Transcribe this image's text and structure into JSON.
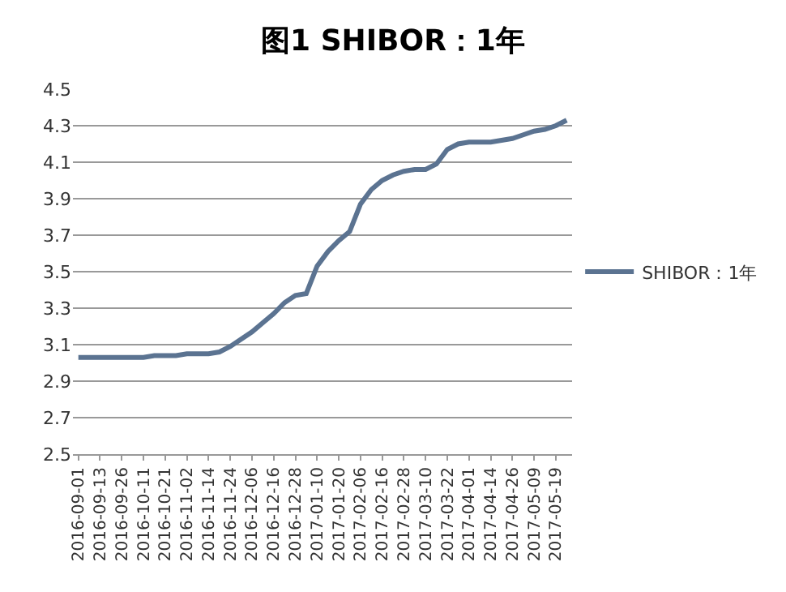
{
  "chart_data": {
    "type": "line",
    "title": "图1 SHIBOR：1年",
    "categories": [
      "2016-09-01",
      null,
      "2016-09-13",
      null,
      "2016-09-26",
      null,
      "2016-10-11",
      null,
      "2016-10-21",
      null,
      "2016-11-02",
      null,
      "2016-11-14",
      null,
      "2016-11-24",
      null,
      "2016-12-06",
      null,
      "2016-12-16",
      null,
      "2016-12-28",
      null,
      "2017-01-10",
      null,
      "2017-01-20",
      null,
      "2017-02-06",
      null,
      "2017-02-16",
      null,
      "2017-02-28",
      null,
      "2017-03-10",
      null,
      "2017-03-22",
      null,
      "2017-04-01",
      null,
      "2017-04-14",
      null,
      "2017-04-26",
      null,
      "2017-05-09",
      null,
      "2017-05-19",
      null
    ],
    "series": [
      {
        "name": "SHIBOR：1年",
        "color": "#5b7391",
        "values": [
          3.03,
          3.03,
          3.03,
          3.03,
          3.03,
          3.03,
          3.03,
          3.04,
          3.04,
          3.04,
          3.05,
          3.05,
          3.05,
          3.06,
          3.09,
          3.13,
          3.17,
          3.22,
          3.27,
          3.33,
          3.37,
          3.38,
          3.53,
          3.61,
          3.67,
          3.72,
          3.87,
          3.95,
          4.0,
          4.03,
          4.05,
          4.06,
          4.06,
          4.09,
          4.17,
          4.2,
          4.21,
          4.21,
          4.21,
          4.22,
          4.23,
          4.25,
          4.27,
          4.28,
          4.3,
          4.33
        ]
      }
    ],
    "ylim": [
      2.5,
      4.5
    ],
    "yticks": [
      2.5,
      2.7,
      2.9,
      3.1,
      3.3,
      3.5,
      3.7,
      3.9,
      4.1,
      4.3,
      4.5
    ],
    "grid": "y",
    "legend": "right",
    "marker": "none",
    "line_style": "solid"
  }
}
